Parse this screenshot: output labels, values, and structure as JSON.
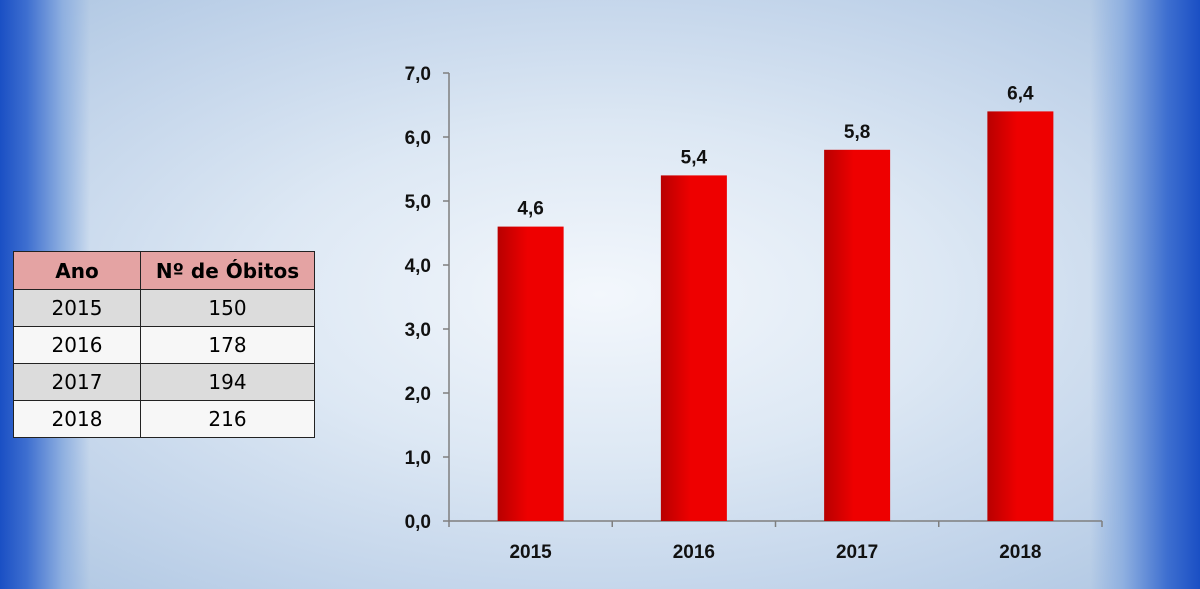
{
  "table": {
    "headers": [
      "Ano",
      "Nº de Óbitos"
    ],
    "rows": [
      [
        "2015",
        "150"
      ],
      [
        "2016",
        "178"
      ],
      [
        "2017",
        "194"
      ],
      [
        "2018",
        "216"
      ]
    ]
  },
  "chart_data": {
    "type": "bar",
    "categories": [
      "2015",
      "2016",
      "2017",
      "2018"
    ],
    "values": [
      4.6,
      5.4,
      5.8,
      6.4
    ],
    "data_labels": [
      "4,6",
      "5,4",
      "5,8",
      "6,4"
    ],
    "y_ticks": [
      "0,0",
      "1,0",
      "2,0",
      "3,0",
      "4,0",
      "5,0",
      "6,0",
      "7,0"
    ],
    "ylim": [
      0,
      7
    ],
    "title": "",
    "xlabel": "",
    "ylabel": "",
    "grid": false,
    "bar_color": "#ee0000",
    "bar_color_dark": "#b80000"
  }
}
